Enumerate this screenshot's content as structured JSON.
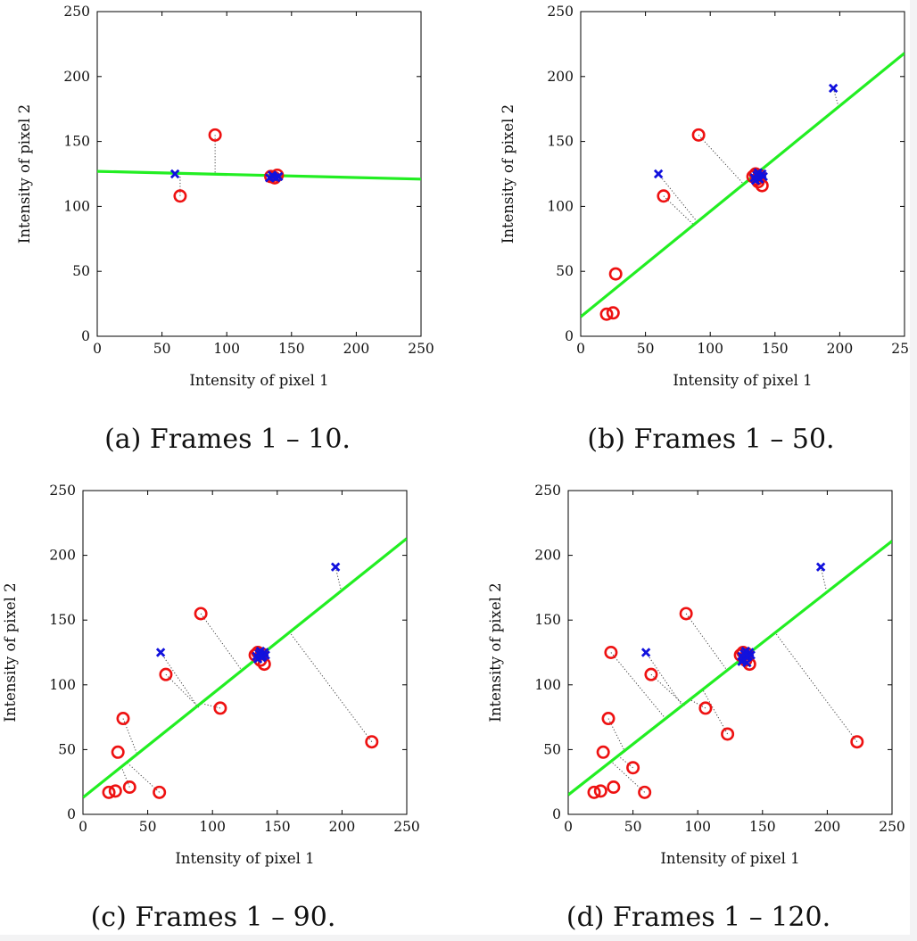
{
  "chart_data": [
    {
      "type": "scatter",
      "caption": "(a) Frames 1 – 10.",
      "xlabel": "Intensity of pixel 1",
      "ylabel": "Intensity of pixel 2",
      "xlim": [
        0,
        250
      ],
      "ylim": [
        0,
        250
      ],
      "xticks": [
        "0",
        "50",
        "100",
        "150",
        "200",
        "250"
      ],
      "yticks": [
        "0",
        "50",
        "100",
        "150",
        "200",
        "250"
      ],
      "colors": {
        "circle": "#ee1111",
        "cross": "#1111dd",
        "line": "#22ee22",
        "residual": "#444444"
      },
      "fit_line": {
        "x": [
          0,
          250
        ],
        "y": [
          127,
          121
        ]
      },
      "circles": [
        [
          64,
          108
        ],
        [
          91,
          155
        ],
        [
          134,
          123
        ],
        [
          137,
          122
        ],
        [
          139,
          124
        ]
      ],
      "crosses": [
        [
          60,
          125
        ],
        [
          133,
          122
        ],
        [
          136,
          123
        ],
        [
          138,
          122
        ],
        [
          140,
          123
        ],
        [
          135,
          124
        ]
      ],
      "residuals": [
        [
          [
            64,
            108
          ],
          [
            64,
            125
          ]
        ],
        [
          [
            91,
            155
          ],
          [
            91,
            125
          ]
        ]
      ]
    },
    {
      "type": "scatter",
      "caption": "(b) Frames 1 – 50.",
      "xlabel": "Intensity of pixel 1",
      "ylabel": "Intensity of pixel 2",
      "xlim": [
        0,
        250
      ],
      "ylim": [
        0,
        250
      ],
      "xticks": [
        "0",
        "50",
        "100",
        "150",
        "200",
        "250"
      ],
      "yticks": [
        "0",
        "50",
        "100",
        "150",
        "200",
        "250"
      ],
      "colors": {
        "circle": "#ee1111",
        "cross": "#1111dd",
        "line": "#22ee22",
        "residual": "#444444"
      },
      "fit_line": {
        "x": [
          0,
          250
        ],
        "y": [
          15,
          218
        ]
      },
      "circles": [
        [
          20,
          17
        ],
        [
          25,
          18
        ],
        [
          27,
          48
        ],
        [
          64,
          108
        ],
        [
          91,
          155
        ],
        [
          135,
          125
        ],
        [
          137,
          119
        ],
        [
          140,
          116
        ],
        [
          133,
          123
        ],
        [
          138,
          124
        ],
        [
          136,
          121
        ]
      ],
      "crosses": [
        [
          60,
          125
        ],
        [
          195,
          191
        ],
        [
          134,
          122
        ],
        [
          136,
          124
        ],
        [
          138,
          121
        ],
        [
          140,
          125
        ],
        [
          141,
          123
        ],
        [
          135,
          120
        ],
        [
          137,
          126
        ]
      ],
      "residuals": [
        [
          [
            60,
            125
          ],
          [
            90,
            88
          ]
        ],
        [
          [
            64,
            108
          ],
          [
            87,
            86
          ]
        ],
        [
          [
            91,
            155
          ],
          [
            125,
            118
          ]
        ],
        [
          [
            195,
            191
          ],
          [
            199,
            177
          ]
        ]
      ]
    },
    {
      "type": "scatter",
      "caption": "(c) Frames 1 – 90.",
      "xlabel": "Intensity of pixel 1",
      "ylabel": "Intensity of pixel 2",
      "xlim": [
        0,
        250
      ],
      "ylim": [
        0,
        250
      ],
      "xticks": [
        "0",
        "50",
        "100",
        "150",
        "200",
        "250"
      ],
      "yticks": [
        "0",
        "50",
        "100",
        "150",
        "200",
        "250"
      ],
      "colors": {
        "circle": "#ee1111",
        "cross": "#1111dd",
        "line": "#22ee22",
        "residual": "#444444"
      },
      "fit_line": {
        "x": [
          0,
          250
        ],
        "y": [
          13,
          213
        ]
      },
      "circles": [
        [
          20,
          17
        ],
        [
          25,
          18
        ],
        [
          27,
          48
        ],
        [
          31,
          74
        ],
        [
          36,
          21
        ],
        [
          59,
          17
        ],
        [
          64,
          108
        ],
        [
          91,
          155
        ],
        [
          106,
          82
        ],
        [
          135,
          125
        ],
        [
          137,
          119
        ],
        [
          140,
          116
        ],
        [
          133,
          123
        ],
        [
          138,
          124
        ],
        [
          223,
          56
        ]
      ],
      "crosses": [
        [
          60,
          125
        ],
        [
          195,
          191
        ],
        [
          134,
          122
        ],
        [
          136,
          124
        ],
        [
          138,
          121
        ],
        [
          140,
          125
        ],
        [
          141,
          123
        ],
        [
          135,
          120
        ],
        [
          137,
          126
        ],
        [
          139,
          122
        ]
      ],
      "residuals": [
        [
          [
            60,
            125
          ],
          [
            88,
            84
          ]
        ],
        [
          [
            64,
            108
          ],
          [
            90,
            82
          ]
        ],
        [
          [
            91,
            155
          ],
          [
            122,
            112
          ]
        ],
        [
          [
            195,
            191
          ],
          [
            199,
            174
          ]
        ],
        [
          [
            223,
            56
          ],
          [
            160,
            140
          ]
        ],
        [
          [
            59,
            17
          ],
          [
            34,
            40
          ]
        ],
        [
          [
            36,
            21
          ],
          [
            30,
            36
          ]
        ],
        [
          [
            31,
            74
          ],
          [
            42,
            46
          ]
        ],
        [
          [
            106,
            82
          ],
          [
            90,
            86
          ]
        ]
      ]
    },
    {
      "type": "scatter",
      "caption": "(d) Frames 1 – 120.",
      "xlabel": "Intensity of pixel 1",
      "ylabel": "Intensity of pixel 2",
      "xlim": [
        0,
        250
      ],
      "ylim": [
        0,
        250
      ],
      "xticks": [
        "0",
        "50",
        "100",
        "150",
        "200",
        "250"
      ],
      "yticks": [
        "0",
        "50",
        "100",
        "150",
        "200",
        "250"
      ],
      "colors": {
        "circle": "#ee1111",
        "cross": "#1111dd",
        "line": "#22ee22",
        "residual": "#444444"
      },
      "fit_line": {
        "x": [
          0,
          250
        ],
        "y": [
          15,
          211
        ]
      },
      "circles": [
        [
          20,
          17
        ],
        [
          25,
          18
        ],
        [
          27,
          48
        ],
        [
          31,
          74
        ],
        [
          33,
          125
        ],
        [
          35,
          21
        ],
        [
          50,
          36
        ],
        [
          59,
          17
        ],
        [
          64,
          108
        ],
        [
          91,
          155
        ],
        [
          106,
          82
        ],
        [
          123,
          62
        ],
        [
          135,
          125
        ],
        [
          137,
          119
        ],
        [
          140,
          116
        ],
        [
          133,
          123
        ],
        [
          138,
          124
        ],
        [
          223,
          56
        ]
      ],
      "crosses": [
        [
          60,
          125
        ],
        [
          195,
          191
        ],
        [
          134,
          122
        ],
        [
          136,
          124
        ],
        [
          138,
          121
        ],
        [
          140,
          125
        ],
        [
          141,
          123
        ],
        [
          135,
          120
        ],
        [
          137,
          126
        ],
        [
          139,
          122
        ],
        [
          134,
          118
        ],
        [
          138,
          117
        ]
      ],
      "residuals": [
        [
          [
            33,
            125
          ],
          [
            75,
            74
          ]
        ],
        [
          [
            60,
            125
          ],
          [
            88,
            84
          ]
        ],
        [
          [
            64,
            108
          ],
          [
            90,
            84
          ]
        ],
        [
          [
            91,
            155
          ],
          [
            122,
            112
          ]
        ],
        [
          [
            195,
            191
          ],
          [
            199,
            174
          ]
        ],
        [
          [
            223,
            56
          ],
          [
            160,
            140
          ]
        ],
        [
          [
            59,
            17
          ],
          [
            34,
            40
          ]
        ],
        [
          [
            31,
            74
          ],
          [
            44,
            48
          ]
        ],
        [
          [
            50,
            36
          ],
          [
            40,
            44
          ]
        ],
        [
          [
            123,
            62
          ],
          [
            104,
            96
          ]
        ],
        [
          [
            106,
            82
          ],
          [
            95,
            88
          ]
        ]
      ]
    }
  ]
}
